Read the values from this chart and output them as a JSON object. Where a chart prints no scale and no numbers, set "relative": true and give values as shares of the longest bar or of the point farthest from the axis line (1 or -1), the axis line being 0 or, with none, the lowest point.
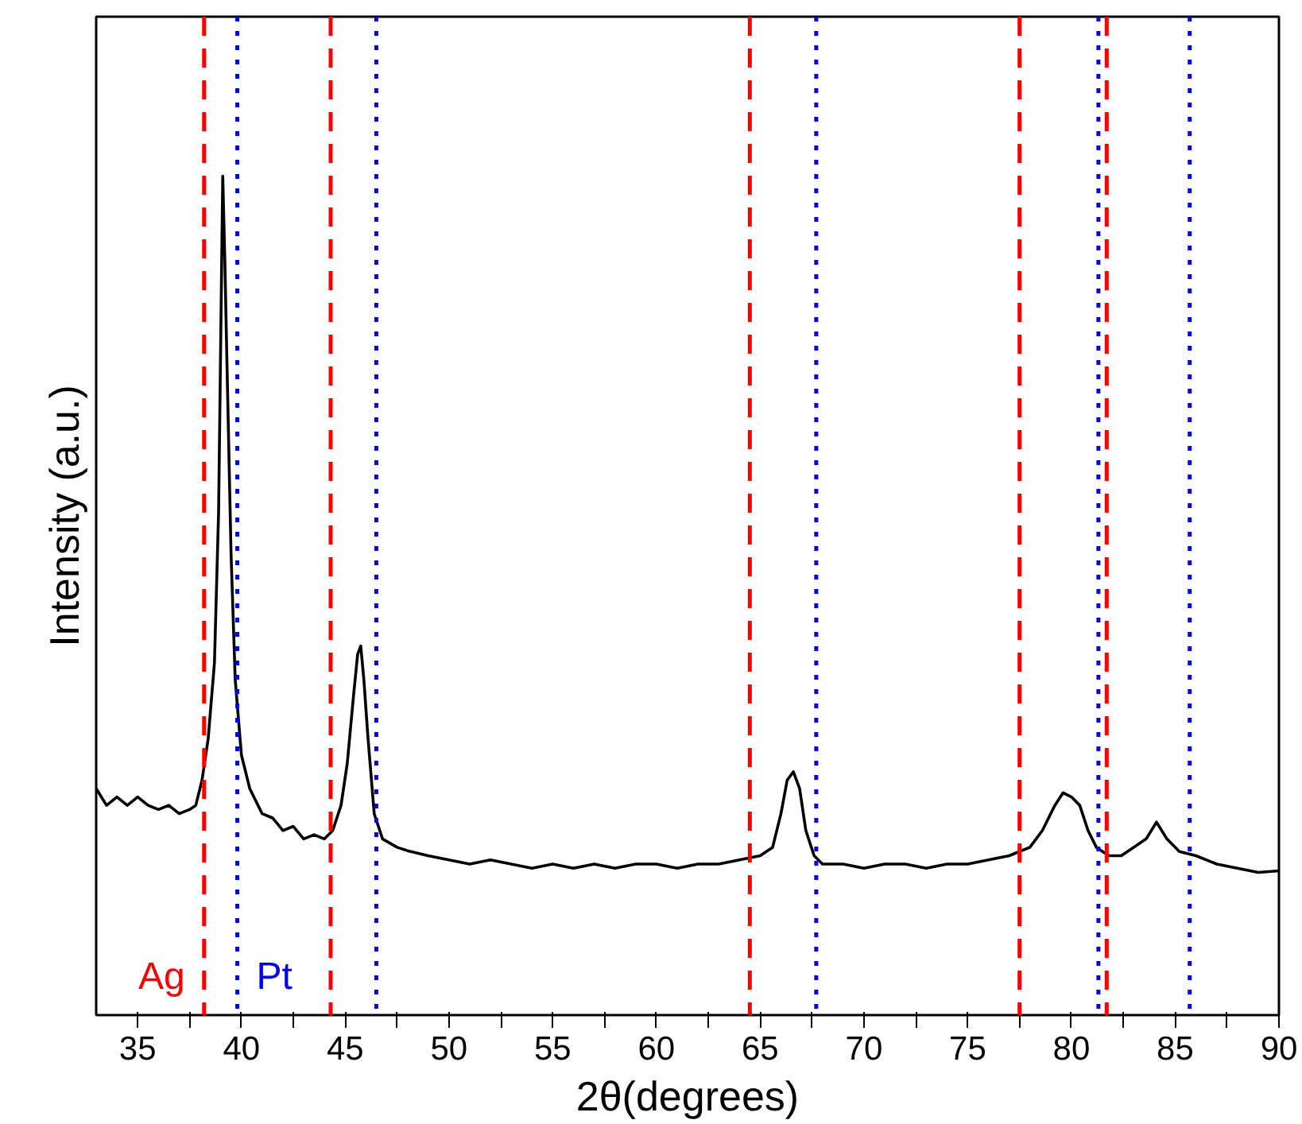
{
  "chart_data": {
    "type": "line",
    "relative": true,
    "xlabel": "2θ(degrees)",
    "ylabel": "Intensity (a.u.)",
    "xlim": [
      33,
      90
    ],
    "xticks": [
      35,
      {
        "value": 37.5,
        "label": null
      },
      40,
      {
        "value": 42.5,
        "label": null
      },
      45,
      {
        "value": 47.5,
        "label": null
      },
      50,
      {
        "value": 52.5,
        "label": null
      },
      55,
      {
        "value": 57.5,
        "label": null
      },
      60,
      {
        "value": 62.5,
        "label": null
      },
      65,
      {
        "value": 67.5,
        "label": null
      },
      70,
      {
        "value": 72.5,
        "label": null
      },
      75,
      {
        "value": 77.5,
        "label": null
      },
      80,
      {
        "value": 82.5,
        "label": null
      },
      85,
      {
        "value": 87.5,
        "label": null
      },
      90
    ],
    "grid": false,
    "series": [
      {
        "color": "#000000",
        "x": [
          33,
          33.5,
          34,
          34.5,
          35,
          35.5,
          36,
          36.5,
          37,
          37.5,
          37.8,
          38.1,
          38.4,
          38.7,
          38.9,
          39.0,
          39.1,
          39.2,
          39.3,
          39.5,
          39.7,
          40.0,
          40.4,
          41,
          41.5,
          42,
          42.5,
          43,
          43.5,
          44,
          44.4,
          44.8,
          45.1,
          45.4,
          45.6,
          45.75,
          45.9,
          46.1,
          46.4,
          46.8,
          47.5,
          48,
          49,
          50,
          51,
          52,
          53,
          54,
          55,
          56,
          57,
          58,
          59,
          60,
          61,
          62,
          63,
          64,
          65,
          65.6,
          66.0,
          66.3,
          66.6,
          66.9,
          67.2,
          67.6,
          68,
          69,
          70,
          71,
          72,
          73,
          74,
          75,
          76,
          77,
          78,
          78.6,
          79.2,
          79.6,
          80.0,
          80.4,
          80.8,
          81.2,
          81.8,
          82.4,
          83,
          83.6,
          84.1,
          84.6,
          85.2,
          86,
          87,
          88,
          89,
          90
        ],
        "values": [
          0.27,
          0.25,
          0.26,
          0.25,
          0.26,
          0.25,
          0.245,
          0.25,
          0.24,
          0.245,
          0.25,
          0.28,
          0.33,
          0.42,
          0.6,
          0.8,
          1.0,
          0.9,
          0.78,
          0.55,
          0.4,
          0.31,
          0.27,
          0.24,
          0.235,
          0.22,
          0.225,
          0.21,
          0.215,
          0.21,
          0.22,
          0.25,
          0.3,
          0.38,
          0.43,
          0.44,
          0.4,
          0.33,
          0.24,
          0.21,
          0.2,
          0.196,
          0.19,
          0.185,
          0.18,
          0.185,
          0.18,
          0.175,
          0.18,
          0.175,
          0.18,
          0.175,
          0.18,
          0.18,
          0.175,
          0.18,
          0.18,
          0.185,
          0.19,
          0.2,
          0.24,
          0.28,
          0.29,
          0.27,
          0.22,
          0.19,
          0.18,
          0.18,
          0.175,
          0.18,
          0.18,
          0.175,
          0.18,
          0.18,
          0.185,
          0.19,
          0.2,
          0.22,
          0.25,
          0.265,
          0.26,
          0.25,
          0.22,
          0.2,
          0.19,
          0.19,
          0.2,
          0.21,
          0.23,
          0.21,
          0.195,
          0.19,
          0.18,
          0.175,
          0.17,
          0.172
        ]
      }
    ],
    "ref_lines": [
      {
        "axis": "x",
        "value": 38.2,
        "label": "Ag",
        "color": "#ff0000",
        "line_style": "dashed"
      },
      {
        "axis": "x",
        "value": 44.3,
        "label": null,
        "color": "#ff0000",
        "line_style": "dashed"
      },
      {
        "axis": "x",
        "value": 64.5,
        "label": null,
        "color": "#ff0000",
        "line_style": "dashed"
      },
      {
        "axis": "x",
        "value": 77.5,
        "label": null,
        "color": "#ff0000",
        "line_style": "dashed"
      },
      {
        "axis": "x",
        "value": 81.7,
        "label": null,
        "color": "#ff0000",
        "line_style": "dashed"
      },
      {
        "axis": "x",
        "value": 39.8,
        "label": "Pt",
        "color": "#0000ff",
        "line_style": "dotted"
      },
      {
        "axis": "x",
        "value": 46.5,
        "label": null,
        "color": "#0000ff",
        "line_style": "dotted"
      },
      {
        "axis": "x",
        "value": 67.7,
        "label": null,
        "color": "#0000ff",
        "line_style": "dotted"
      },
      {
        "axis": "x",
        "value": 81.3,
        "label": null,
        "color": "#0000ff",
        "line_style": "dotted"
      },
      {
        "axis": "x",
        "value": 85.7,
        "label": null,
        "color": "#0000ff",
        "line_style": "dotted"
      }
    ]
  }
}
